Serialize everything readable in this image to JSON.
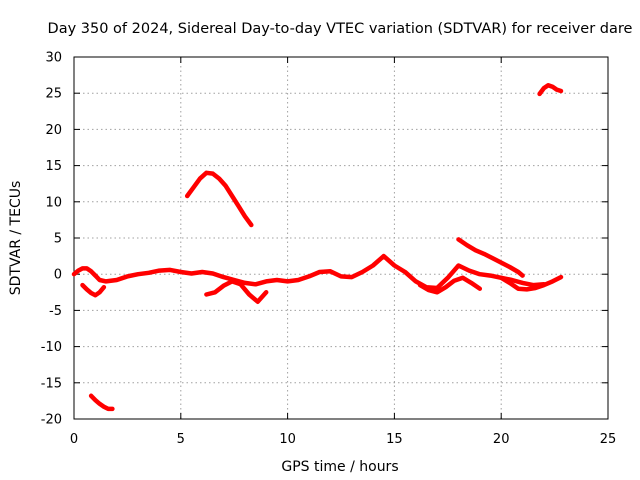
{
  "chart_data": {
    "type": "line",
    "title": "Day 350 of 2024, Sidereal Day-to-day VTEC variation (SDTVAR) for receiver dare",
    "xlabel": "GPS time / hours",
    "ylabel": "SDTVAR / TECUs",
    "xlim": [
      0,
      25
    ],
    "ylim": [
      -20,
      30
    ],
    "xticks": [
      0,
      5,
      10,
      15,
      20,
      25
    ],
    "yticks": [
      -20,
      -15,
      -10,
      -5,
      0,
      5,
      10,
      15,
      20,
      25,
      30
    ],
    "grid": true,
    "color": "#ff0000",
    "series": [
      {
        "name": "seg-low-start",
        "x": [
          0.8,
          1.0,
          1.2,
          1.4,
          1.6,
          1.8
        ],
        "y": [
          -16.8,
          -17.4,
          -17.9,
          -18.3,
          -18.6,
          -18.6
        ]
      },
      {
        "name": "seg-main-baseline",
        "x": [
          0.0,
          0.2,
          0.4,
          0.6,
          0.8,
          1.0,
          1.2,
          1.5,
          2.0,
          2.5,
          3.0,
          3.5,
          4.0,
          4.5,
          5.0,
          5.5,
          6.0,
          6.5,
          7.0,
          7.5,
          8.0,
          8.5,
          9.0,
          9.5,
          10.0,
          10.5,
          11.0,
          11.5,
          12.0,
          12.5,
          13.0,
          13.5,
          14.0,
          14.5,
          15.0,
          15.5,
          16.0,
          16.5,
          17.0,
          17.5,
          18.0,
          18.5,
          19.0,
          19.5,
          20.0,
          20.5,
          21.0,
          21.5,
          22.0
        ],
        "y": [
          0.0,
          0.5,
          0.8,
          0.8,
          0.4,
          -0.2,
          -0.8,
          -1.0,
          -0.8,
          -0.3,
          0.0,
          0.2,
          0.5,
          0.6,
          0.3,
          0.1,
          0.3,
          0.1,
          -0.4,
          -0.8,
          -1.2,
          -1.4,
          -1.0,
          -0.8,
          -1.0,
          -0.8,
          -0.3,
          0.3,
          0.4,
          -0.3,
          -0.4,
          0.3,
          1.2,
          2.5,
          1.2,
          0.3,
          -1.0,
          -1.8,
          -1.9,
          -0.5,
          1.2,
          0.5,
          0.0,
          -0.2,
          -0.5,
          -0.8,
          -1.2,
          -1.5,
          -1.4
        ]
      },
      {
        "name": "seg-dip-early",
        "x": [
          0.4,
          0.6,
          0.8,
          1.0,
          1.2,
          1.4
        ],
        "y": [
          -1.5,
          -2.1,
          -2.6,
          -2.9,
          -2.5,
          -1.8
        ]
      },
      {
        "name": "seg-dip-mid",
        "x": [
          6.2,
          6.6,
          7.0,
          7.4,
          7.8,
          8.2,
          8.6,
          9.0
        ],
        "y": [
          -2.8,
          -2.5,
          -1.6,
          -1.0,
          -1.4,
          -2.8,
          -3.8,
          -2.5
        ]
      },
      {
        "name": "seg-arc-day",
        "x": [
          5.3,
          5.6,
          5.9,
          6.2,
          6.5,
          6.8,
          7.1,
          7.4,
          7.7,
          8.0,
          8.3
        ],
        "y": [
          10.8,
          12.0,
          13.2,
          14.0,
          13.9,
          13.2,
          12.2,
          10.8,
          9.4,
          8.0,
          6.8
        ]
      },
      {
        "name": "seg-mid-cluster",
        "x": [
          16.2,
          16.6,
          17.0,
          17.4,
          17.8,
          18.2,
          18.6,
          19.0
        ],
        "y": [
          -1.5,
          -2.2,
          -2.5,
          -1.8,
          -0.9,
          -0.5,
          -1.2,
          -2.0
        ]
      },
      {
        "name": "seg-descend-late",
        "x": [
          18.0,
          18.4,
          18.8,
          19.2,
          19.6,
          20.0,
          20.4,
          20.8,
          21.0
        ],
        "y": [
          4.8,
          4.0,
          3.3,
          2.8,
          2.2,
          1.6,
          1.0,
          0.3,
          -0.2
        ]
      },
      {
        "name": "seg-tail-late",
        "x": [
          20.0,
          20.4,
          20.8,
          21.2,
          21.6,
          22.0,
          22.4,
          22.8
        ],
        "y": [
          -0.5,
          -1.2,
          -2.0,
          -2.1,
          -1.9,
          -1.5,
          -1.0,
          -0.4
        ]
      },
      {
        "name": "seg-arc-top",
        "x": [
          21.8,
          22.0,
          22.2,
          22.4,
          22.6,
          22.8
        ],
        "y": [
          24.9,
          25.7,
          26.1,
          25.9,
          25.5,
          25.3
        ]
      }
    ]
  }
}
